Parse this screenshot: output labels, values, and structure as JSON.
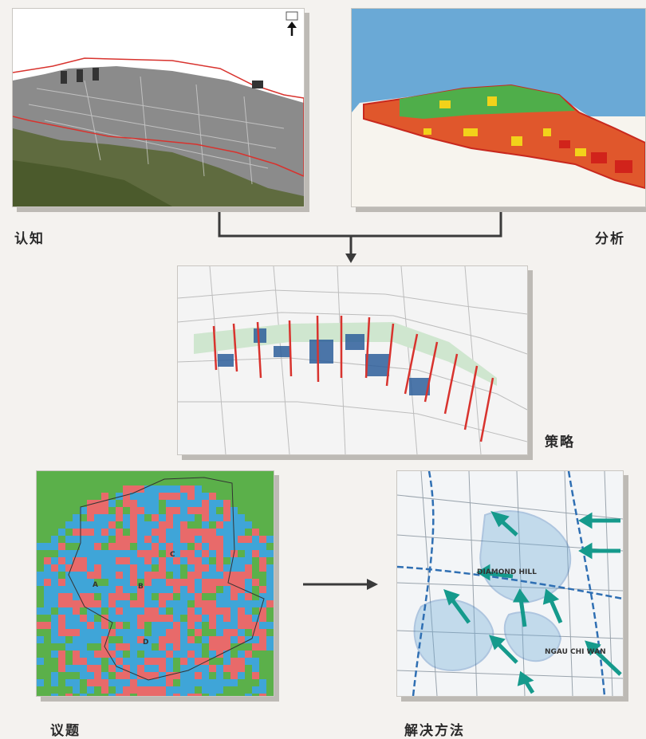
{
  "stages": {
    "cognition": {
      "label": "认知"
    },
    "analysis": {
      "label": "分析"
    },
    "strategy": {
      "label": "策略"
    },
    "issues": {
      "label": "议题"
    },
    "solution": {
      "label": "解决方法"
    }
  },
  "issues_map": {
    "zone_labels": [
      "A",
      "B",
      "C",
      "D"
    ]
  },
  "solution_map": {
    "place_labels": [
      "DIAMOND HILL",
      "NGAU CHI WAN"
    ]
  },
  "colors": {
    "boundary_red": "#d8332e",
    "flow_arrow": "#159a8c",
    "connector": "#3a3a3a",
    "water_blue": "#6aa9d6",
    "issue_green": "#5bb04a",
    "issue_blue": "#3fa5d8",
    "issue_red": "#e86a6a"
  },
  "icons": {
    "north_arrow": "north-arrow-icon"
  }
}
